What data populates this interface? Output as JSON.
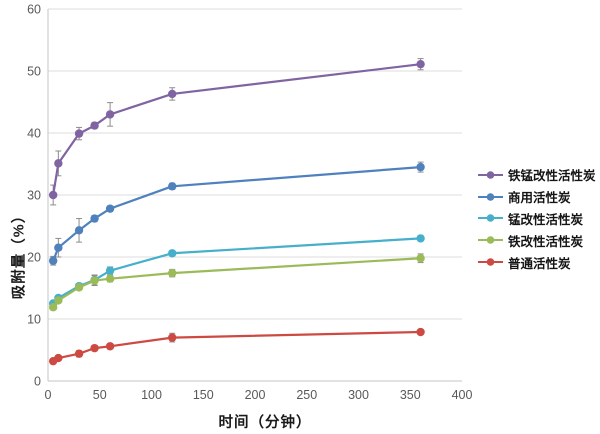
{
  "chart_data": {
    "type": "line",
    "title": "",
    "xlabel": "时间（分钟）",
    "ylabel": "吸附量（%）",
    "x": [
      5,
      10,
      30,
      45,
      60,
      120,
      360
    ],
    "x_ticks": [
      0,
      50,
      100,
      150,
      200,
      250,
      300,
      350,
      400
    ],
    "y_ticks": [
      0,
      10,
      20,
      30,
      40,
      50,
      60
    ],
    "xlim": [
      0,
      400
    ],
    "ylim": [
      0,
      60
    ],
    "grid": "horizontal",
    "legend_position": "right",
    "error_bars": true,
    "series": [
      {
        "name": "铁锰改性活性炭",
        "color": "#8064A2",
        "values": [
          30.0,
          35.1,
          39.9,
          41.2,
          43.0,
          46.3,
          51.1
        ],
        "errors": [
          1.6,
          2.0,
          1.0,
          0.5,
          1.9,
          1.0,
          0.9
        ]
      },
      {
        "name": "商用活性炭",
        "color": "#4F81BD",
        "values": [
          19.4,
          21.5,
          24.3,
          26.2,
          27.8,
          31.4,
          34.5
        ],
        "errors": [
          0.7,
          1.5,
          1.9,
          0.5,
          0.4,
          0.5,
          0.8
        ]
      },
      {
        "name": "锰改性活性炭",
        "color": "#46AFCB",
        "values": [
          12.5,
          13.4,
          15.3,
          16.3,
          17.8,
          20.6,
          23.0
        ],
        "errors": [
          0.3,
          0.3,
          0.4,
          0.8,
          0.6,
          0.4,
          0.4
        ]
      },
      {
        "name": "铁改性活性炭",
        "color": "#9BBB59",
        "values": [
          11.9,
          13.0,
          15.1,
          16.2,
          16.5,
          17.4,
          19.8
        ],
        "errors": [
          0.4,
          0.3,
          0.4,
          0.8,
          0.5,
          0.6,
          0.7
        ]
      },
      {
        "name": "普通活性炭",
        "color": "#CC4A42",
        "values": [
          3.2,
          3.7,
          4.4,
          5.3,
          5.6,
          7.0,
          7.9
        ],
        "errors": [
          0.3,
          0.3,
          0.5,
          0.3,
          0.3,
          0.7,
          0.3
        ]
      }
    ],
    "style": {
      "background": "#ffffff",
      "grid_color": "#dcdcdc",
      "axis_color": "#c6c6c6",
      "tick_label_color": "#595959",
      "error_bar_color": "#8c8c8c"
    }
  }
}
